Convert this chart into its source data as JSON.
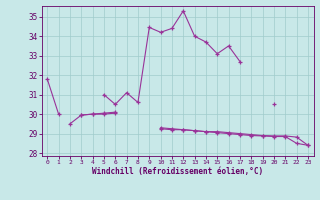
{
  "background_color": "#c8e8e8",
  "grid_color": "#a0cccc",
  "line_color": "#993399",
  "tick_color": "#660066",
  "hours": [
    0,
    1,
    2,
    3,
    4,
    5,
    6,
    7,
    8,
    9,
    10,
    11,
    12,
    13,
    14,
    15,
    16,
    17,
    18,
    19,
    20,
    21,
    22,
    23
  ],
  "line1": [
    31.8,
    30.0,
    null,
    null,
    null,
    31.0,
    30.5,
    31.1,
    30.6,
    34.45,
    34.2,
    34.4,
    35.3,
    34.0,
    33.7,
    33.1,
    33.5,
    32.7,
    null,
    null,
    30.5,
    null,
    null,
    null
  ],
  "line2": [
    null,
    null,
    29.5,
    29.95,
    30.0,
    30.0,
    30.05,
    null,
    null,
    null,
    29.25,
    29.2,
    29.2,
    29.15,
    29.1,
    29.05,
    29.0,
    28.95,
    28.9,
    28.88,
    28.85,
    28.85,
    28.5,
    28.4
  ],
  "line3": [
    null,
    null,
    null,
    29.95,
    30.0,
    30.05,
    30.1,
    null,
    null,
    null,
    29.3,
    29.25,
    29.2,
    29.15,
    29.1,
    29.1,
    29.05,
    29.0,
    28.95,
    28.9,
    28.88,
    28.88,
    28.82,
    28.4
  ],
  "ylim": [
    27.85,
    35.55
  ],
  "yticks": [
    28,
    29,
    30,
    31,
    32,
    33,
    34,
    35
  ],
  "xlabel": "Windchill (Refroidissement éolien,°C)"
}
